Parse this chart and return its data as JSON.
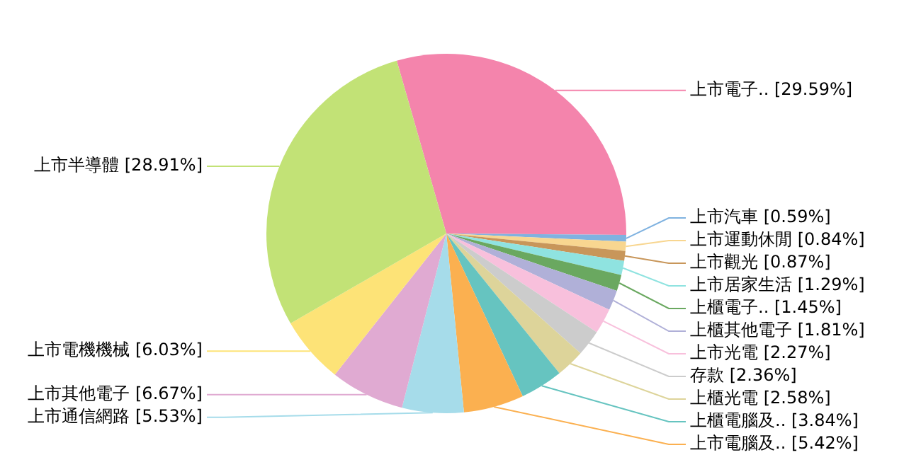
{
  "chart_data": {
    "type": "pie",
    "legend": false,
    "categories": [
      "上市電子..",
      "上市汽車",
      "上市運動休閒",
      "上市觀光",
      "上市居家生活",
      "上櫃電子..",
      "上櫃其他電子",
      "上市光電",
      "存款",
      "上櫃光電",
      "上櫃電腦及..",
      "上市電腦及..",
      "上市通信網路",
      "上市其他電子",
      "上市電機機械",
      "上市半導體"
    ],
    "values": [
      29.59,
      0.59,
      0.84,
      0.87,
      1.29,
      1.45,
      1.81,
      2.27,
      2.36,
      2.58,
      3.84,
      5.42,
      5.53,
      6.67,
      6.03,
      28.91
    ],
    "value_labels": [
      "[29.59%]",
      "[0.59%]",
      "[0.84%]",
      "[0.87%]",
      "[1.29%]",
      "[1.45%]",
      "[1.81%]",
      "[2.27%]",
      "[2.36%]",
      "[2.58%]",
      "[3.84%]",
      "[5.42%]",
      "[5.53%]",
      "[6.67%]",
      "[6.03%]",
      "[28.91%]"
    ],
    "colors": [
      "#f484ac",
      "#7fb2e0",
      "#f8d690",
      "#c8965a",
      "#8fe3e0",
      "#6aa860",
      "#b0b0d8",
      "#f8c0dc",
      "#cccccc",
      "#ddd49a",
      "#66c4c0",
      "#fbb050",
      "#a6dcea",
      "#e0aad2",
      "#fde377",
      "#c2e276"
    ]
  }
}
